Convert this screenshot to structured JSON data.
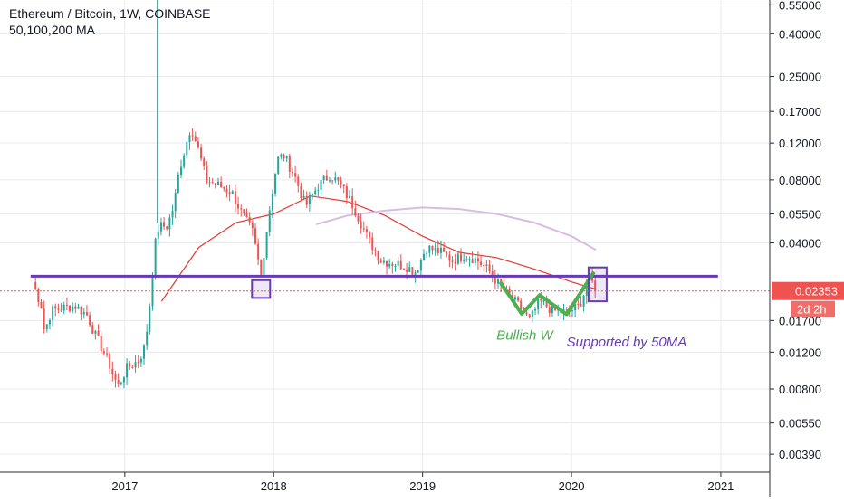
{
  "legend": {
    "title": "Ethereum / Bitcoin, 1W, COINBASE",
    "indicator": "50,100,200 MA"
  },
  "colors": {
    "up": "#26a69a",
    "down": "#ef5350",
    "ma50": "#e53935",
    "ma100": "#d7bde2",
    "support": "#673ab7",
    "pattern": "#4caf50",
    "price_tag": "#ef5350",
    "grid": "#e8eaee",
    "axis_text": "#131722"
  },
  "chart_data": {
    "type": "candlestick",
    "title": "Ethereum / Bitcoin, 1W, COINBASE",
    "y_scale": "log",
    "ylim": [
      0.0032,
      0.58
    ],
    "xlim": [
      "2016-03-01",
      "2021-05-01"
    ],
    "y_ticks": [
      "0.55000",
      "0.40000",
      "0.25000",
      "0.17000",
      "0.12000",
      "0.08000",
      "0.05500",
      "0.04000",
      "0.02353",
      "0.01700",
      "0.01200",
      "0.00800",
      "0.00550",
      "0.00390"
    ],
    "y_tick_values": [
      0.55,
      0.4,
      0.25,
      0.17,
      0.12,
      0.08,
      0.055,
      0.04,
      0.02353,
      0.017,
      0.012,
      0.008,
      0.0055,
      0.0039
    ],
    "x_ticks": [
      "2017",
      "2018",
      "2019",
      "2020",
      "2021"
    ],
    "x_tick_dates": [
      "2017-01-01",
      "2018-01-01",
      "2019-01-01",
      "2020-01-01",
      "2021-01-01"
    ],
    "price": [
      [
        "2016-05-20",
        0.026
      ],
      [
        "2016-06-10",
        0.02
      ],
      [
        "2016-06-18",
        0.015
      ],
      [
        "2016-07-05",
        0.019
      ],
      [
        "2016-08-01",
        0.0195
      ],
      [
        "2016-09-01",
        0.02
      ],
      [
        "2016-10-01",
        0.018
      ],
      [
        "2016-10-20",
        0.0145
      ],
      [
        "2016-11-20",
        0.011
      ],
      [
        "2016-12-15",
        0.0082
      ],
      [
        "2017-01-05",
        0.01
      ],
      [
        "2017-02-05",
        0.011
      ],
      [
        "2017-02-20",
        0.013
      ],
      [
        "2017-03-05",
        0.022
      ],
      [
        "2017-03-15",
        0.038
      ],
      [
        "2017-03-25",
        0.048
      ],
      [
        "2017-04-15",
        0.048
      ],
      [
        "2017-05-01",
        0.06
      ],
      [
        "2017-05-15",
        0.09
      ],
      [
        "2017-06-01",
        0.12
      ],
      [
        "2017-06-12",
        0.145
      ],
      [
        "2017-07-01",
        0.11
      ],
      [
        "2017-07-20",
        0.08
      ],
      [
        "2017-08-20",
        0.075
      ],
      [
        "2017-09-20",
        0.07
      ],
      [
        "2017-10-15",
        0.055
      ],
      [
        "2017-11-10",
        0.045
      ],
      [
        "2017-12-01",
        0.028
      ],
      [
        "2017-12-20",
        0.055
      ],
      [
        "2018-01-10",
        0.1
      ],
      [
        "2018-01-25",
        0.105
      ],
      [
        "2018-02-20",
        0.085
      ],
      [
        "2018-03-20",
        0.06
      ],
      [
        "2018-04-20",
        0.075
      ],
      [
        "2018-05-20",
        0.085
      ],
      [
        "2018-06-15",
        0.075
      ],
      [
        "2018-07-15",
        0.06
      ],
      [
        "2018-08-20",
        0.042
      ],
      [
        "2018-09-20",
        0.033
      ],
      [
        "2018-10-20",
        0.032
      ],
      [
        "2018-11-20",
        0.031
      ],
      [
        "2018-12-15",
        0.029
      ],
      [
        "2019-01-10",
        0.038
      ],
      [
        "2019-02-15",
        0.036
      ],
      [
        "2019-03-15",
        0.033
      ],
      [
        "2019-04-15",
        0.035
      ],
      [
        "2019-05-15",
        0.033
      ],
      [
        "2019-06-15",
        0.029
      ],
      [
        "2019-07-15",
        0.024
      ],
      [
        "2019-08-25",
        0.02
      ],
      [
        "2019-09-20",
        0.017
      ],
      [
        "2019-10-15",
        0.021
      ],
      [
        "2019-11-15",
        0.019
      ],
      [
        "2019-12-20",
        0.0185
      ],
      [
        "2020-01-20",
        0.02
      ],
      [
        "2020-02-15",
        0.027
      ],
      [
        "2020-03-05",
        0.0235
      ]
    ],
    "series": [
      {
        "name": "50",
        "color": "#e53935",
        "points": [
          [
            "2017-04-01",
            0.021
          ],
          [
            "2017-07-01",
            0.038
          ],
          [
            "2017-10-01",
            0.05
          ],
          [
            "2018-01-01",
            0.055
          ],
          [
            "2018-04-01",
            0.067
          ],
          [
            "2018-07-01",
            0.063
          ],
          [
            "2018-10-01",
            0.054
          ],
          [
            "2019-01-01",
            0.043
          ],
          [
            "2019-04-01",
            0.036
          ],
          [
            "2019-07-01",
            0.034
          ],
          [
            "2019-10-01",
            0.03
          ],
          [
            "2020-01-01",
            0.026
          ],
          [
            "2020-03-01",
            0.024
          ]
        ]
      },
      {
        "name": "100",
        "color": "#d7bde2",
        "points": [
          [
            "2018-04-15",
            0.049
          ],
          [
            "2018-07-01",
            0.054
          ],
          [
            "2018-10-01",
            0.057
          ],
          [
            "2019-01-01",
            0.059
          ],
          [
            "2019-04-01",
            0.058
          ],
          [
            "2019-07-01",
            0.055
          ],
          [
            "2019-10-01",
            0.05
          ],
          [
            "2020-01-01",
            0.043
          ],
          [
            "2020-03-01",
            0.037
          ]
        ]
      }
    ],
    "support_level": 0.0277,
    "last_price": "0.02353",
    "countdown": "2d 2h",
    "annotations": [
      {
        "text": "Bullish W",
        "date": "2019-07-01",
        "value": 0.0138,
        "color": "#4caf50"
      },
      {
        "text": "Supported by 50MA",
        "date": "2019-12-20",
        "value": 0.0128,
        "color": "#673ab7"
      }
    ],
    "w_pattern": [
      [
        "2019-07-10",
        0.026
      ],
      [
        "2019-09-01",
        0.0183
      ],
      [
        "2019-10-15",
        0.0225
      ],
      [
        "2019-12-20",
        0.0182
      ],
      [
        "2020-02-25",
        0.029
      ]
    ],
    "highlight_boxes": [
      {
        "date": "2017-12-01",
        "low": 0.0218,
        "high": 0.0265
      },
      {
        "date": "2020-03-05",
        "low": 0.021,
        "high": 0.0305
      }
    ]
  }
}
